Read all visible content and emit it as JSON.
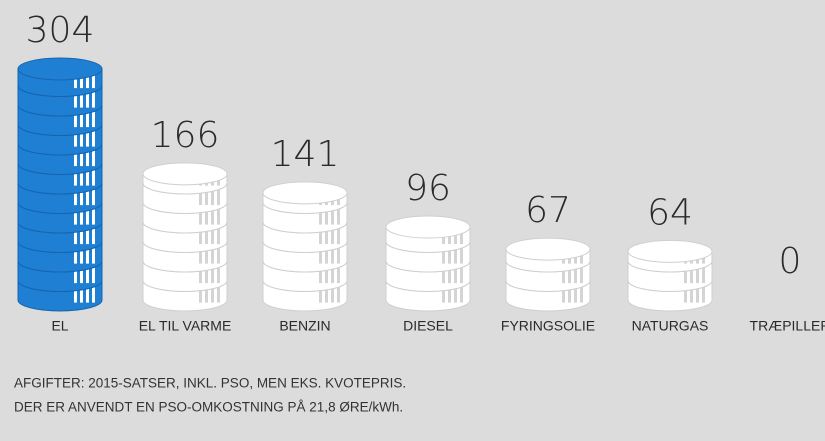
{
  "chart_data": {
    "type": "coin-stack",
    "categories": [
      "EL",
      "EL TIL VARME",
      "BENZIN",
      "DIESEL",
      "FYRINGSOLIE",
      "NATURGAS",
      "TRÆPILLER"
    ],
    "values": [
      304,
      166,
      141,
      96,
      67,
      64,
      0
    ],
    "colors": [
      "#1f7fd2",
      "#ffffff",
      "#ffffff",
      "#ffffff",
      "#ffffff",
      "#ffffff",
      "#ffffff"
    ],
    "notes": [
      "AFGIFTER: 2015-SATSER, INKL. PSO, MEN EKS. KVOTEPRIS.",
      "DER ER ANVENDT EN PSO-OMKOSTNING PÅ 21,8 ØRE/kWh."
    ]
  }
}
